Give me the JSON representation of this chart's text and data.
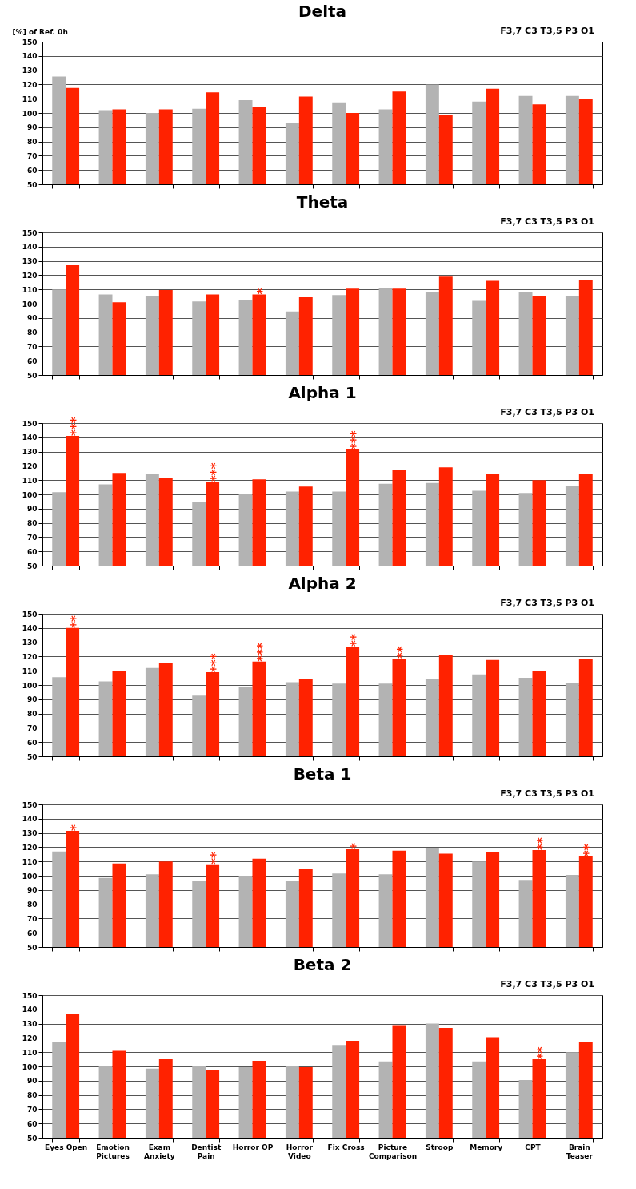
{
  "chart_data": [
    {
      "type": "bar",
      "title": "Delta",
      "subtitle": "F3,7 C3 T3,5 P3 O1",
      "ylabel": "[%] of Ref. 0h",
      "categories": [
        "Eyes Open",
        "Emotion Pictures",
        "Exam Anxiety",
        "Dentist Pain",
        "Horror OP",
        "Horror Video",
        "Fix Cross",
        "Picture Comparison",
        "Stroop",
        "Memory",
        "CPT",
        "Brain Teaser"
      ],
      "ylim": [
        50,
        150
      ],
      "yticks": [
        50,
        60,
        70,
        80,
        90,
        100,
        110,
        120,
        130,
        140,
        150
      ],
      "grid": "y",
      "tick_labels": "y",
      "series": [
        {
          "color": "#b3b3b3",
          "values": [
            125.5,
            102,
            100,
            103,
            109,
            93,
            107.5,
            102.5,
            120,
            108,
            112,
            112
          ]
        },
        {
          "color": "#ff2200",
          "values": [
            117.5,
            102.5,
            102.5,
            114.5,
            104,
            111.5,
            100,
            115,
            98.5,
            117,
            106,
            110
          ]
        }
      ]
    },
    {
      "type": "bar",
      "title": "Theta",
      "subtitle": "F3,7 C3 T3,5 P3 O1",
      "categories": [
        "Eyes Open",
        "Emotion Pictures",
        "Exam Anxiety",
        "Dentist Pain",
        "Horror OP",
        "Horror Video",
        "Fix Cross",
        "Picture Comparison",
        "Stroop",
        "Memory",
        "CPT",
        "Brain Teaser"
      ],
      "ylim": [
        50,
        150
      ],
      "yticks": [
        50,
        60,
        70,
        80,
        90,
        100,
        110,
        120,
        130,
        140,
        150
      ],
      "grid": "y",
      "tick_labels": "y",
      "series": [
        {
          "color": "#b3b3b3",
          "values": [
            110,
            106.5,
            105,
            101.5,
            102.5,
            94.5,
            106,
            111,
            108,
            102,
            108,
            105
          ]
        },
        {
          "color": "#ff2200",
          "values": [
            127,
            101,
            109.5,
            106.5,
            106.5,
            104.5,
            110.5,
            110.5,
            119,
            116,
            105,
            116.5
          ]
        }
      ],
      "annotations": [
        {
          "text": "*",
          "x": "Horror OP",
          "y": 106.5
        }
      ]
    },
    {
      "type": "bar",
      "title": "Alpha 1",
      "subtitle": "F3,7 C3 T3,5 P3 O1",
      "categories": [
        "Eyes Open",
        "Emotion Pictures",
        "Exam Anxiety",
        "Dentist Pain",
        "Horror OP",
        "Horror Video",
        "Fix Cross",
        "Picture Comparison",
        "Stroop",
        "Memory",
        "CPT",
        "Brain Teaser"
      ],
      "ylim": [
        50,
        150
      ],
      "yticks": [
        50,
        60,
        70,
        80,
        90,
        100,
        110,
        120,
        130,
        140,
        150
      ],
      "grid": "y",
      "tick_labels": "y",
      "series": [
        {
          "color": "#b3b3b3",
          "values": [
            101.5,
            107,
            114.5,
            95,
            100,
            102,
            102,
            107.5,
            108,
            102.5,
            101,
            106
          ]
        },
        {
          "color": "#ff2200",
          "values": [
            141,
            115,
            111.5,
            109,
            110.5,
            105.5,
            131.5,
            117,
            119,
            114,
            110,
            114
          ]
        }
      ],
      "annotations": [
        {
          "text": "***",
          "x": "Eyes Open",
          "y": 141
        },
        {
          "text": "***",
          "x": "Dentist Pain",
          "y": 109
        },
        {
          "text": "***",
          "x": "Fix Cross",
          "y": 131.5
        }
      ]
    },
    {
      "type": "bar",
      "title": "Alpha 2",
      "subtitle": "F3,7 C3 T3,5 P3 O1",
      "categories": [
        "Eyes Open",
        "Emotion Pictures",
        "Exam Anxiety",
        "Dentist Pain",
        "Horror OP",
        "Horror Video",
        "Fix Cross",
        "Picture Comparison",
        "Stroop",
        "Memory",
        "CPT",
        "Brain Teaser"
      ],
      "ylim": [
        50,
        150
      ],
      "yticks": [
        50,
        60,
        70,
        80,
        90,
        100,
        110,
        120,
        130,
        140,
        150
      ],
      "grid": "y",
      "tick_labels": "y",
      "series": [
        {
          "color": "#b3b3b3",
          "values": [
            105.5,
            102.5,
            112,
            92.5,
            98.5,
            102,
            101,
            101,
            104,
            107.5,
            105,
            101.5
          ]
        },
        {
          "color": "#ff2200",
          "values": [
            140,
            110,
            115.5,
            109,
            116.5,
            104,
            127,
            118.5,
            121,
            117.5,
            110,
            118
          ]
        }
      ],
      "annotations": [
        {
          "text": "**",
          "x": "Eyes Open",
          "y": 140
        },
        {
          "text": "***",
          "x": "Dentist Pain",
          "y": 109
        },
        {
          "text": "***",
          "x": "Horror OP",
          "y": 116.5
        },
        {
          "text": "**",
          "x": "Fix Cross",
          "y": 127
        },
        {
          "text": "**",
          "x": "Picture Comparison",
          "y": 118.5
        }
      ]
    },
    {
      "type": "bar",
      "title": "Beta 1",
      "subtitle": "F3,7 C3 T3,5 P3 O1",
      "categories": [
        "Eyes Open",
        "Emotion Pictures",
        "Exam Anxiety",
        "Dentist Pain",
        "Horror OP",
        "Horror Video",
        "Fix Cross",
        "Picture Comparison",
        "Stroop",
        "Memory",
        "CPT",
        "Brain Teaser"
      ],
      "ylim": [
        50,
        150
      ],
      "yticks": [
        50,
        60,
        70,
        80,
        90,
        100,
        110,
        120,
        130,
        140,
        150
      ],
      "grid": "y",
      "tick_labels": "y",
      "series": [
        {
          "color": "#b3b3b3",
          "values": [
            117,
            98.5,
            101,
            96,
            100,
            96.5,
            101.5,
            101,
            119.5,
            110,
            97,
            100.5
          ]
        },
        {
          "color": "#ff2200",
          "values": [
            131.5,
            108.5,
            110,
            108,
            112,
            104.5,
            118.5,
            117.5,
            115.5,
            116.5,
            118,
            113.5
          ]
        }
      ],
      "annotations": [
        {
          "text": "*",
          "x": "Eyes Open",
          "y": 131.5
        },
        {
          "text": "**",
          "x": "Dentist Pain",
          "y": 108
        },
        {
          "text": "*",
          "x": "Fix Cross",
          "y": 118.5
        },
        {
          "text": "**",
          "x": "CPT",
          "y": 118
        },
        {
          "text": "**",
          "x": "Brain Teaser",
          "y": 113.5
        }
      ]
    },
    {
      "type": "bar",
      "title": "Beta 2",
      "subtitle": "F3,7 C3 T3,5 P3 O1",
      "categories": [
        "Eyes Open",
        "Emotion Pictures",
        "Exam Anxiety",
        "Dentist Pain",
        "Horror OP",
        "Horror Video",
        "Fix Cross",
        "Picture Comparison",
        "Stroop",
        "Memory",
        "CPT",
        "Brain Teaser"
      ],
      "ylim": [
        50,
        150
      ],
      "yticks": [
        50,
        60,
        70,
        80,
        90,
        100,
        110,
        120,
        130,
        140,
        150
      ],
      "grid": "y",
      "series": [
        {
          "color": "#b3b3b3",
          "values": [
            117,
            100,
            98.5,
            100,
            99.5,
            100.5,
            115,
            103.5,
            130,
            103.5,
            90.5,
            110
          ]
        },
        {
          "color": "#ff2200",
          "values": [
            136.5,
            111,
            105,
            97.5,
            104,
            99.5,
            118,
            129,
            127,
            120.5,
            105,
            117
          ]
        }
      ],
      "annotations": [
        {
          "text": "**",
          "x": "CPT",
          "y": 105
        }
      ]
    }
  ]
}
